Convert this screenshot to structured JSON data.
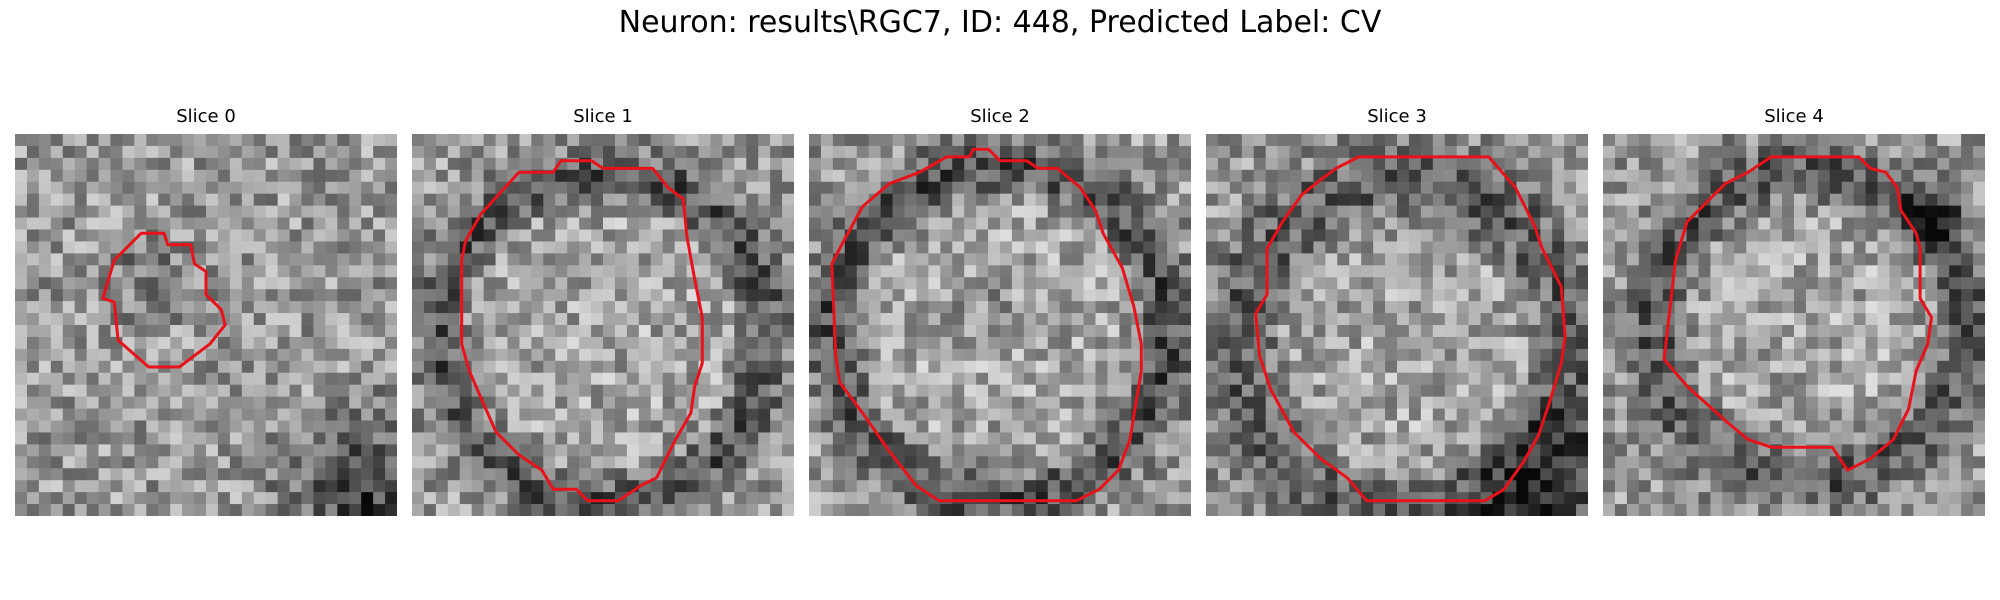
{
  "figure": {
    "title": "Neuron: results\\RGC7, ID: 448, Predicted Label: CV"
  },
  "contour_color": "#e8121a",
  "slices": [
    {
      "label": "Slice 0"
    },
    {
      "label": "Slice 1"
    },
    {
      "label": "Slice 2"
    },
    {
      "label": "Slice 3"
    },
    {
      "label": "Slice 4"
    }
  ]
}
